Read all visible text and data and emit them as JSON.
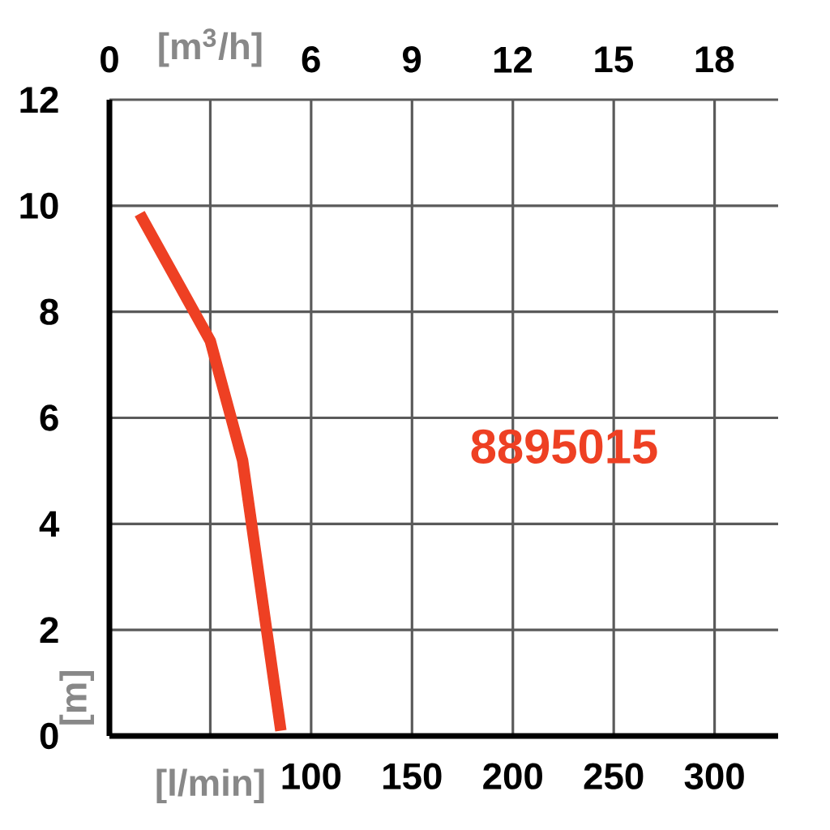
{
  "chart_data": {
    "type": "line",
    "xlabel": "[l/min]",
    "x2label": "[m$^{3}$/h]",
    "ylabel": "[m]",
    "annotations": [
      "8895015"
    ],
    "xlim": [
      0,
      331.5
    ],
    "xticks": [
      {
        "value": 50,
        "label": null
      },
      100,
      150,
      200,
      250,
      300
    ],
    "x2lim": [
      0,
      19.9
    ],
    "x2ticks": [
      0,
      {
        "value": 3,
        "label": null
      },
      6,
      9,
      12,
      15,
      18
    ],
    "ylim": [
      0,
      12
    ],
    "yticks": [
      0,
      2,
      4,
      6,
      8,
      10,
      12
    ],
    "grid": true,
    "x": [
      15,
      50,
      66,
      85
    ],
    "values": [
      9.85,
      7.45,
      5.2,
      0.1
    ],
    "color": "#ee4023",
    "marker": "none",
    "line_style": "solid"
  }
}
